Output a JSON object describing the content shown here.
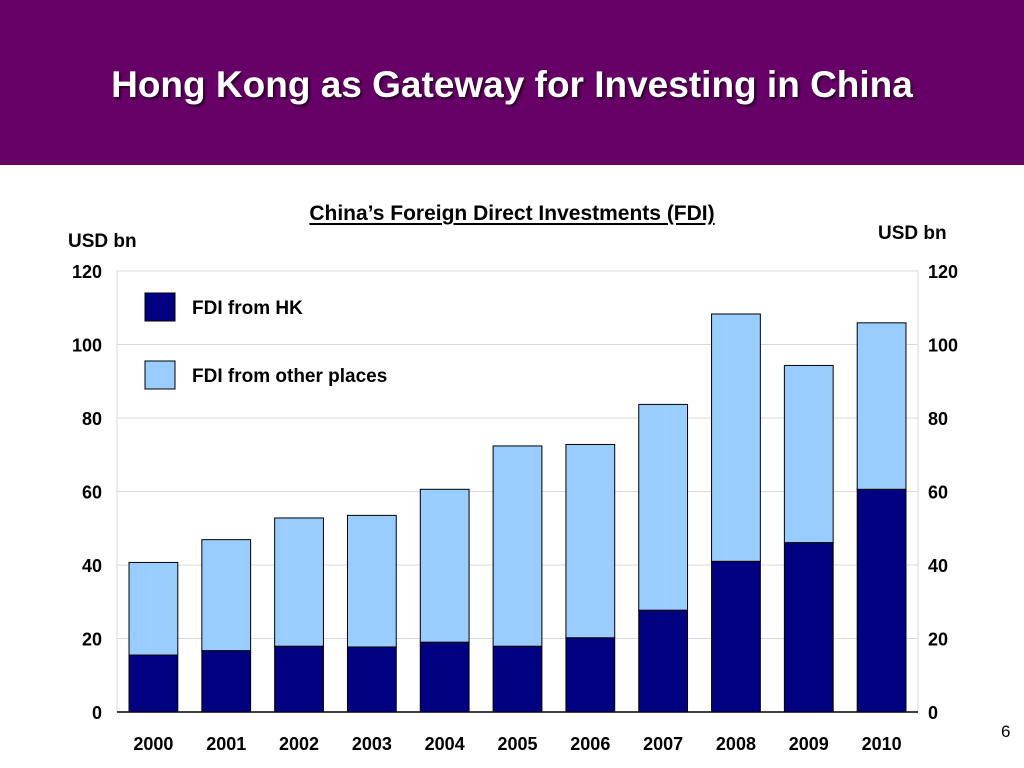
{
  "slide": {
    "title": "Hong Kong as Gateway for Investing in China",
    "page_number": "6"
  },
  "colors": {
    "banner": "#660066",
    "fdi_hk": "#000080",
    "fdi_other": "#99CCFF"
  },
  "chart_data": {
    "type": "bar",
    "stacked": true,
    "title": "China’s Foreign Direct Investments (FDI)",
    "ylabel_left": "USD bn",
    "ylabel_right": "USD bn",
    "ylim": [
      0,
      120
    ],
    "yticks": [
      0,
      20,
      40,
      60,
      80,
      100,
      120
    ],
    "grid": true,
    "legend_position": "top-left",
    "categories": [
      "2000",
      "2001",
      "2002",
      "2003",
      "2004",
      "2005",
      "2006",
      "2007",
      "2008",
      "2009",
      "2010"
    ],
    "series": [
      {
        "name": "FDI from HK",
        "color": "#000080",
        "values": [
          15.5,
          16.7,
          17.9,
          17.7,
          19.0,
          17.9,
          20.2,
          27.7,
          41.0,
          46.1,
          60.6
        ]
      },
      {
        "name": "FDI from other places",
        "color": "#99CCFF",
        "values": [
          25.2,
          30.2,
          34.9,
          35.8,
          41.6,
          54.5,
          52.6,
          56.0,
          67.3,
          48.2,
          45.3
        ]
      }
    ]
  }
}
